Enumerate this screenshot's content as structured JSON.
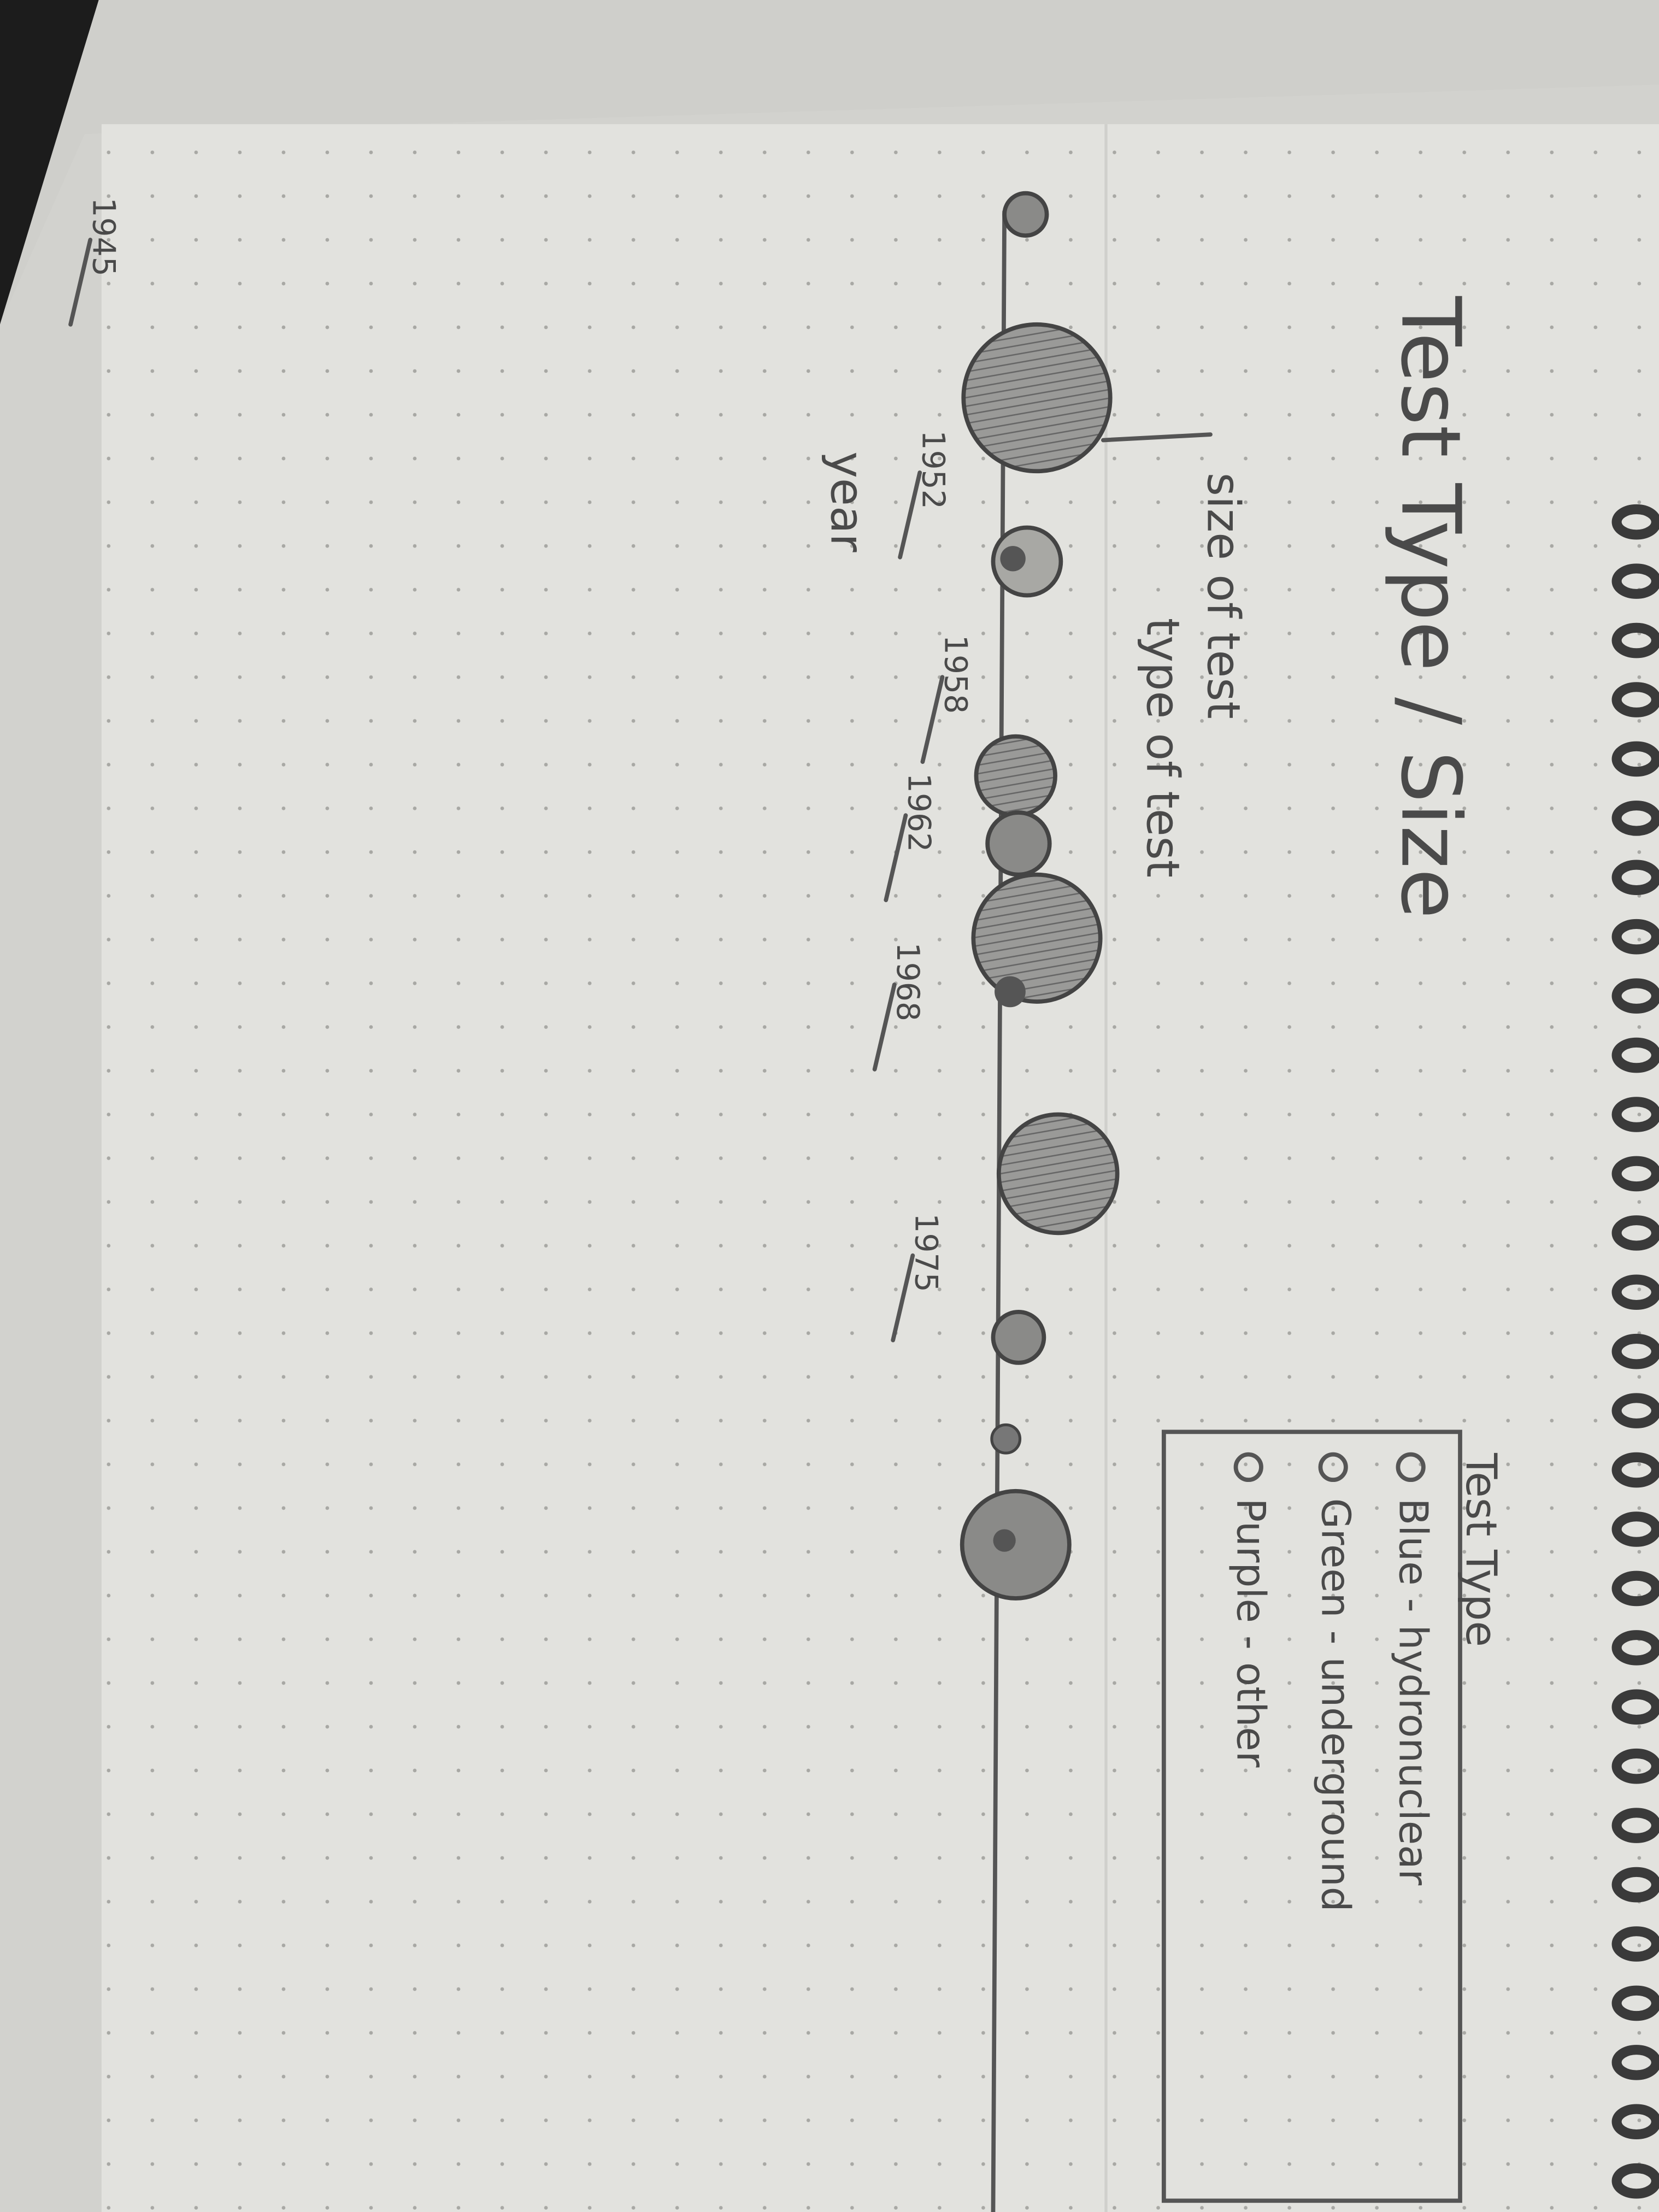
{
  "title": "Test Type / Size",
  "annotations": {
    "size": "size of test",
    "type": "type of test",
    "axis": "year"
  },
  "years": [
    "1945",
    "1952",
    "1958",
    "1962",
    "1968",
    "1975"
  ],
  "legend": {
    "title": "Test Type",
    "items": [
      "Blue - hydronuclear",
      "Green - underground",
      "Purple - other"
    ]
  }
}
